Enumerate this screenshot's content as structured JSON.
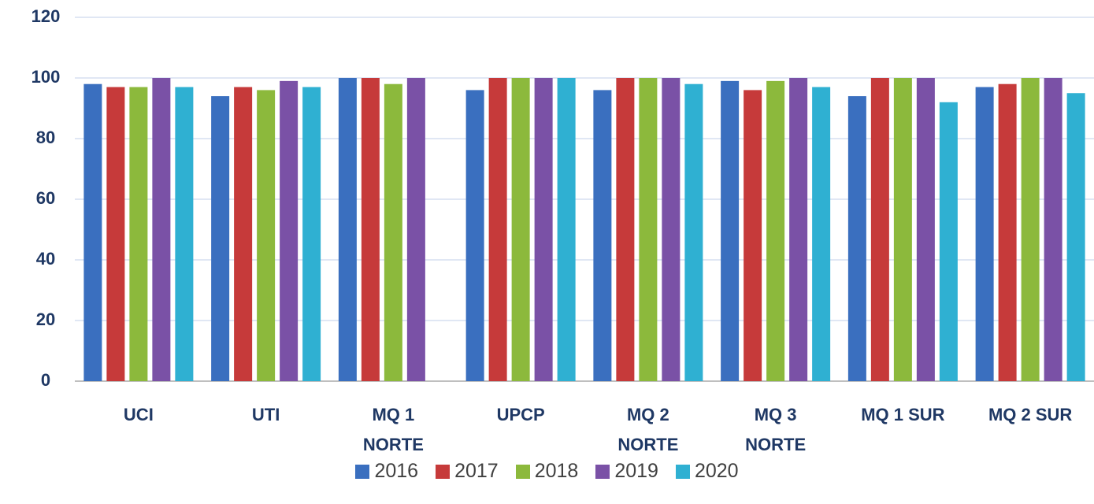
{
  "chart_data": {
    "type": "bar",
    "categories": [
      "UCI",
      "UTI",
      "MQ 1 NORTE",
      "UPCP",
      "MQ 2 NORTE",
      "MQ 3 NORTE",
      "MQ 1 SUR",
      "MQ 2 SUR"
    ],
    "series": [
      {
        "name": "2016",
        "color": "#3a6fbf",
        "values": [
          98,
          94,
          100,
          96,
          96,
          99,
          94,
          97
        ]
      },
      {
        "name": "2017",
        "color": "#c63a3a",
        "values": [
          97,
          97,
          100,
          100,
          100,
          96,
          100,
          98
        ]
      },
      {
        "name": "2018",
        "color": "#8cb93c",
        "values": [
          97,
          96,
          98,
          100,
          100,
          99,
          100,
          100
        ]
      },
      {
        "name": "2019",
        "color": "#7a51a6",
        "values": [
          100,
          99,
          100,
          100,
          100,
          100,
          100,
          100
        ]
      },
      {
        "name": "2020",
        "color": "#2fb0d2",
        "values": [
          97,
          97,
          null,
          100,
          98,
          97,
          92,
          95
        ]
      }
    ],
    "ylim": [
      0,
      120
    ],
    "yticks": [
      0,
      20,
      40,
      60,
      80,
      100,
      120
    ],
    "grid": true,
    "legend": "bottom"
  }
}
